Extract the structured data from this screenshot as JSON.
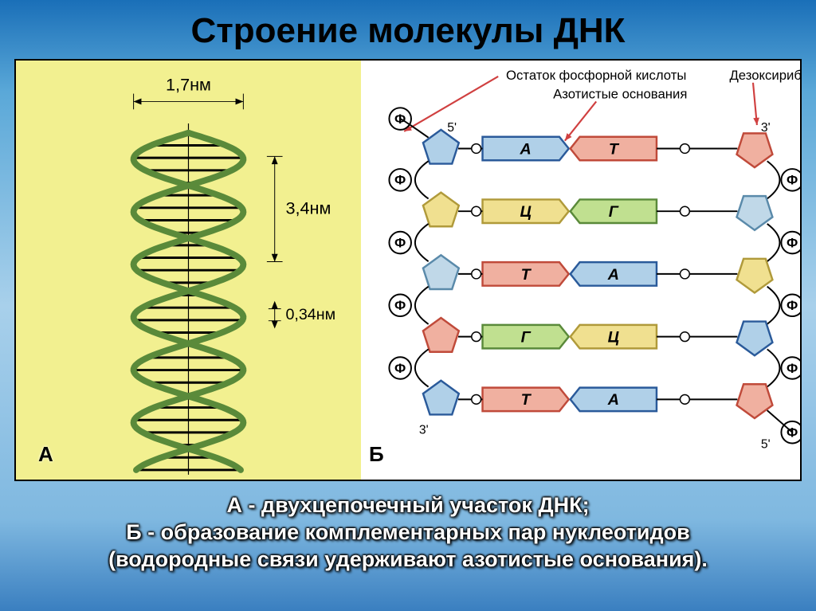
{
  "title": "Строение молекулы ДНК",
  "panelA": {
    "label": "А",
    "dim_width": "1,7нм",
    "dim_turn": "3,4нм",
    "dim_step": "0,34нм",
    "helix_color": "#5a8a3a",
    "rung_color": "#000000",
    "axis_color": "#000000",
    "arrow_color": "#000000"
  },
  "panelB": {
    "label": "Б",
    "label_phosphate": "Остаток фосфорной кислоты",
    "label_sugar": "Дезоксирибоза",
    "label_bases": "Азотистые основания",
    "end_5": "5'",
    "end_3": "3'",
    "phos_char": "Ф",
    "colors": {
      "A_fill": "#b0d0e8",
      "A_stroke": "#2a5a9a",
      "T_fill": "#f0b0a0",
      "T_stroke": "#c04a3a",
      "G_fill": "#c0e090",
      "G_stroke": "#5a8a3a",
      "C_fill": "#f0e090",
      "C_stroke": "#b09a3a",
      "sugar1": "#b0d0e8",
      "sugar1_stroke": "#2a5a9a",
      "sugar2": "#f0e090",
      "sugar2_stroke": "#b09a3a",
      "sugar3": "#c0d8e8",
      "sugar3_stroke": "#5a8aaa",
      "sugar4": "#f0b0a0",
      "sugar4_stroke": "#c04a3a",
      "connector": "#000000",
      "arrow": "#d04040"
    },
    "pairs": [
      {
        "l": "А",
        "lc": "A",
        "r": "Т",
        "rc": "T",
        "ls": 1,
        "rs": 4
      },
      {
        "l": "Ц",
        "lc": "C",
        "r": "Г",
        "rc": "G",
        "ls": 2,
        "rs": 3
      },
      {
        "l": "Т",
        "lc": "T",
        "r": "А",
        "rc": "A",
        "ls": 3,
        "rs": 2
      },
      {
        "l": "Г",
        "lc": "G",
        "r": "Ц",
        "rc": "C",
        "ls": 4,
        "rs": 1
      },
      {
        "l": "Т",
        "lc": "T",
        "r": "А",
        "rc": "A",
        "ls": 1,
        "rs": 4
      }
    ]
  },
  "caption": {
    "line1": "А - двухцепочечный участок ДНК;",
    "line2": "Б - образование комплементарных пар нуклеотидов",
    "line3": "(водородные связи удерживают азотистые основания)."
  }
}
